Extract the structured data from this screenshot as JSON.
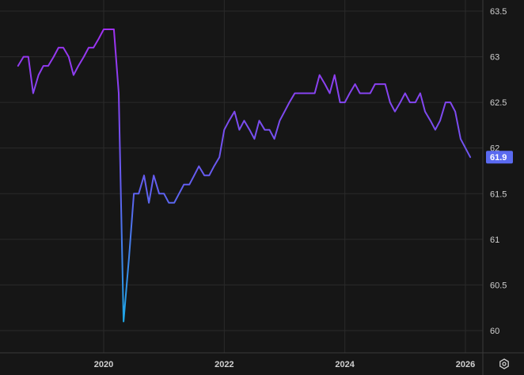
{
  "chart_data": {
    "type": "line",
    "title": "",
    "xlabel": "",
    "ylabel": "",
    "ylim": [
      59.9,
      63.6
    ],
    "xlim": [
      2018.58,
      2026.75
    ],
    "y_ticks": [
      60,
      60.5,
      61,
      61.5,
      62,
      62.5,
      63,
      63.5
    ],
    "y_tick_labels": [
      "60",
      "60.5",
      "61",
      "61.5",
      "62",
      "62.5",
      "63",
      "63.5"
    ],
    "x_ticks": [
      2020,
      2022,
      2024,
      2026
    ],
    "x_tick_labels": [
      "2020",
      "2022",
      "2024",
      "2026"
    ],
    "grid": true,
    "last_value_label": "61.9",
    "series": [
      {
        "color_top": "#a030f0",
        "color_bottom": "#1ea7e6",
        "points": [
          [
            2018.58,
            62.9
          ],
          [
            2018.67,
            63.0
          ],
          [
            2018.75,
            63.0
          ],
          [
            2018.83,
            62.6
          ],
          [
            2018.92,
            62.8
          ],
          [
            2019.0,
            62.9
          ],
          [
            2019.08,
            62.9
          ],
          [
            2019.17,
            63.0
          ],
          [
            2019.25,
            63.1
          ],
          [
            2019.33,
            63.1
          ],
          [
            2019.42,
            63.0
          ],
          [
            2019.5,
            62.8
          ],
          [
            2019.58,
            62.9
          ],
          [
            2019.67,
            63.0
          ],
          [
            2019.75,
            63.1
          ],
          [
            2019.83,
            63.1
          ],
          [
            2019.92,
            63.2
          ],
          [
            2020.0,
            63.3
          ],
          [
            2020.08,
            63.3
          ],
          [
            2020.17,
            63.3
          ],
          [
            2020.25,
            62.6
          ],
          [
            2020.33,
            60.1
          ],
          [
            2020.42,
            60.8
          ],
          [
            2020.5,
            61.5
          ],
          [
            2020.58,
            61.5
          ],
          [
            2020.67,
            61.7
          ],
          [
            2020.75,
            61.4
          ],
          [
            2020.83,
            61.7
          ],
          [
            2020.92,
            61.5
          ],
          [
            2021.0,
            61.5
          ],
          [
            2021.08,
            61.4
          ],
          [
            2021.17,
            61.4
          ],
          [
            2021.25,
            61.5
          ],
          [
            2021.33,
            61.6
          ],
          [
            2021.42,
            61.6
          ],
          [
            2021.5,
            61.7
          ],
          [
            2021.58,
            61.8
          ],
          [
            2021.67,
            61.7
          ],
          [
            2021.75,
            61.7
          ],
          [
            2021.83,
            61.8
          ],
          [
            2021.92,
            61.9
          ],
          [
            2022.0,
            62.2
          ],
          [
            2022.08,
            62.3
          ],
          [
            2022.17,
            62.4
          ],
          [
            2022.25,
            62.2
          ],
          [
            2022.33,
            62.3
          ],
          [
            2022.42,
            62.2
          ],
          [
            2022.5,
            62.1
          ],
          [
            2022.58,
            62.3
          ],
          [
            2022.67,
            62.2
          ],
          [
            2022.75,
            62.2
          ],
          [
            2022.83,
            62.1
          ],
          [
            2022.92,
            62.3
          ],
          [
            2023.0,
            62.4
          ],
          [
            2023.08,
            62.5
          ],
          [
            2023.17,
            62.6
          ],
          [
            2023.25,
            62.6
          ],
          [
            2023.33,
            62.6
          ],
          [
            2023.42,
            62.6
          ],
          [
            2023.5,
            62.6
          ],
          [
            2023.58,
            62.8
          ],
          [
            2023.67,
            62.7
          ],
          [
            2023.75,
            62.6
          ],
          [
            2023.83,
            62.8
          ],
          [
            2023.92,
            62.5
          ],
          [
            2024.0,
            62.5
          ],
          [
            2024.08,
            62.6
          ],
          [
            2024.17,
            62.7
          ],
          [
            2024.25,
            62.6
          ],
          [
            2024.33,
            62.6
          ],
          [
            2024.42,
            62.6
          ],
          [
            2024.5,
            62.7
          ],
          [
            2024.58,
            62.7
          ],
          [
            2024.67,
            62.7
          ],
          [
            2024.75,
            62.5
          ],
          [
            2024.83,
            62.4
          ],
          [
            2024.92,
            62.5
          ],
          [
            2025.0,
            62.6
          ],
          [
            2025.08,
            62.5
          ],
          [
            2025.17,
            62.5
          ],
          [
            2025.25,
            62.6
          ],
          [
            2025.33,
            62.4
          ],
          [
            2025.42,
            62.3
          ],
          [
            2025.5,
            62.2
          ],
          [
            2025.58,
            62.3
          ],
          [
            2025.67,
            62.5
          ],
          [
            2025.75,
            62.5
          ],
          [
            2025.83,
            62.4
          ],
          [
            2025.92,
            62.1
          ],
          [
            2026.08,
            61.9
          ]
        ]
      }
    ]
  },
  "colors": {
    "background": "#161616",
    "grid": "#2a2a2a",
    "tick_text": "#d0d0d0",
    "badge": "#5a6af0"
  },
  "controls": {
    "settings_icon": "settings-icon"
  }
}
